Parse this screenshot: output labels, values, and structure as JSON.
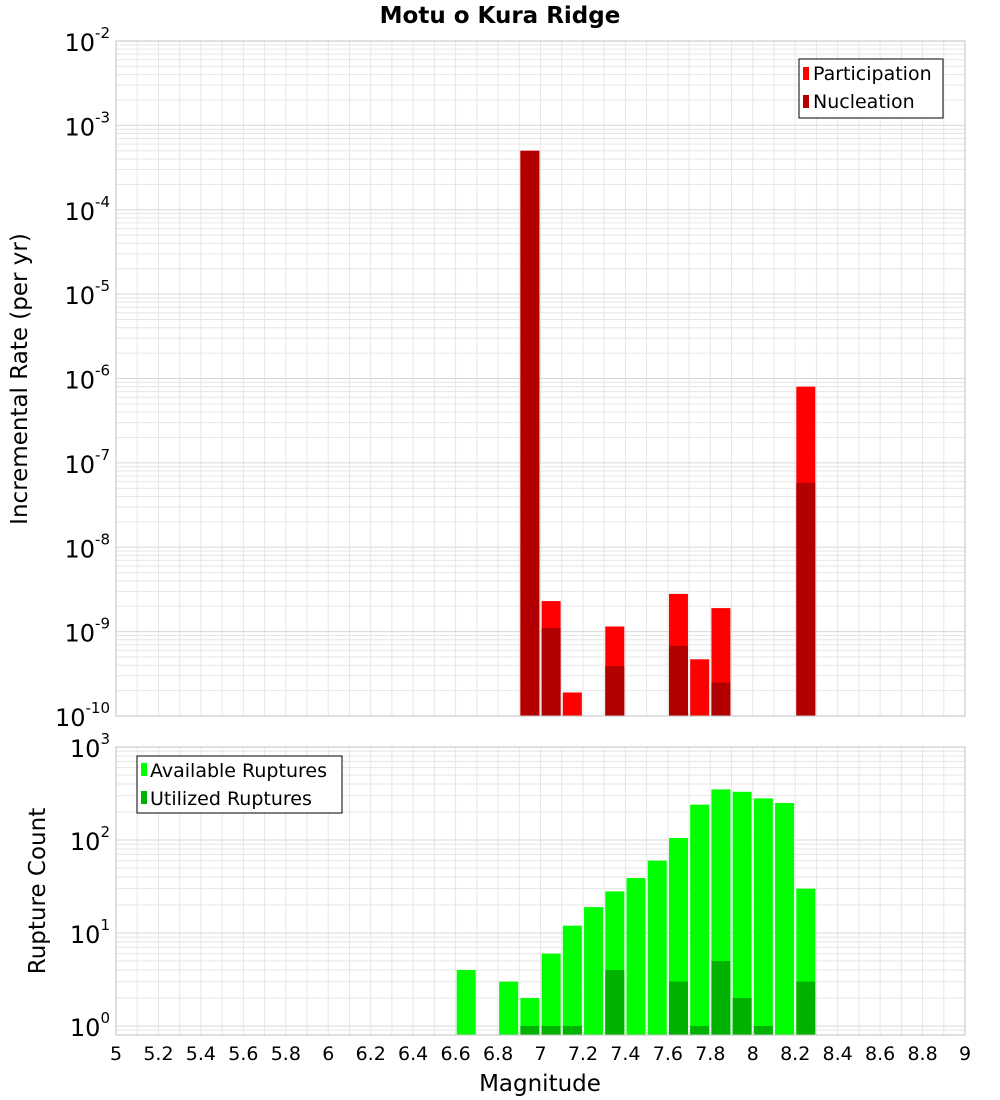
{
  "title": "Motu o Kura Ridge",
  "xlabel": "Magnitude",
  "x_ticks": [
    "5",
    "5.2",
    "5.4",
    "5.6",
    "5.8",
    "6",
    "6.2",
    "6.4",
    "6.6",
    "6.8",
    "7",
    "7.2",
    "7.4",
    "7.6",
    "7.8",
    "8",
    "8.2",
    "8.4",
    "8.6",
    "8.8",
    "9"
  ],
  "colors": {
    "participation": "#ff0000",
    "nucleation": "#b20000",
    "available": "#00ff00",
    "utilized": "#00b200",
    "grid": "#e6e6e6",
    "frame": "#c0c0c0"
  },
  "chart_data": [
    {
      "type": "bar",
      "ylabel": "Incremental Rate (per yr)",
      "y_scale": "log",
      "ylim": [
        1e-10,
        0.01
      ],
      "xlim": [
        5,
        9
      ],
      "y_tick_labels": [
        {
          "base": "10",
          "exp": "-2"
        },
        {
          "base": "10",
          "exp": "-3"
        },
        {
          "base": "10",
          "exp": "-4"
        },
        {
          "base": "10",
          "exp": "-5"
        },
        {
          "base": "10",
          "exp": "-6"
        },
        {
          "base": "10",
          "exp": "-7"
        },
        {
          "base": "10",
          "exp": "-8"
        },
        {
          "base": "10",
          "exp": "-9"
        },
        {
          "base": "10",
          "exp": "-10"
        }
      ],
      "legend": {
        "position": "top-right"
      },
      "x": [
        6.95,
        7.05,
        7.15,
        7.25,
        7.35,
        7.45,
        7.55,
        7.65,
        7.75,
        7.85,
        7.95,
        8.05,
        8.15,
        8.25
      ],
      "series": [
        {
          "name": "Participation",
          "values": [
            0.0005,
            2.3e-09,
            1.9e-10,
            null,
            1.15e-09,
            null,
            null,
            2.8e-09,
            4.7e-10,
            1.9e-09,
            null,
            null,
            null,
            8e-07
          ]
        },
        {
          "name": "Nucleation",
          "values": [
            0.0005,
            1.1e-09,
            null,
            null,
            3.9e-10,
            null,
            null,
            6.8e-10,
            null,
            2.5e-10,
            null,
            null,
            null,
            5.8e-08
          ]
        }
      ]
    },
    {
      "type": "bar",
      "ylabel": "Rupture Count",
      "y_scale": "log",
      "ylim": [
        0.8,
        1000
      ],
      "xlim": [
        5,
        9
      ],
      "y_tick_labels": [
        {
          "base": "10",
          "exp": "3"
        },
        {
          "base": "10",
          "exp": "2"
        },
        {
          "base": "10",
          "exp": "1"
        },
        {
          "base": "10",
          "exp": "0"
        }
      ],
      "legend": {
        "position": "top-left"
      },
      "x": [
        6.65,
        6.75,
        6.85,
        6.95,
        7.05,
        7.15,
        7.25,
        7.35,
        7.45,
        7.55,
        7.65,
        7.75,
        7.85,
        7.95,
        8.05,
        8.15,
        8.25
      ],
      "series": [
        {
          "name": "Available Ruptures",
          "values": [
            4,
            null,
            3,
            2,
            6,
            12,
            19,
            28,
            39,
            60,
            105,
            240,
            350,
            330,
            280,
            250,
            30
          ]
        },
        {
          "name": "Utilized Ruptures",
          "values": [
            null,
            null,
            null,
            1,
            1,
            1,
            null,
            4,
            null,
            null,
            3,
            1,
            5,
            2,
            1,
            null,
            3
          ]
        }
      ]
    }
  ]
}
